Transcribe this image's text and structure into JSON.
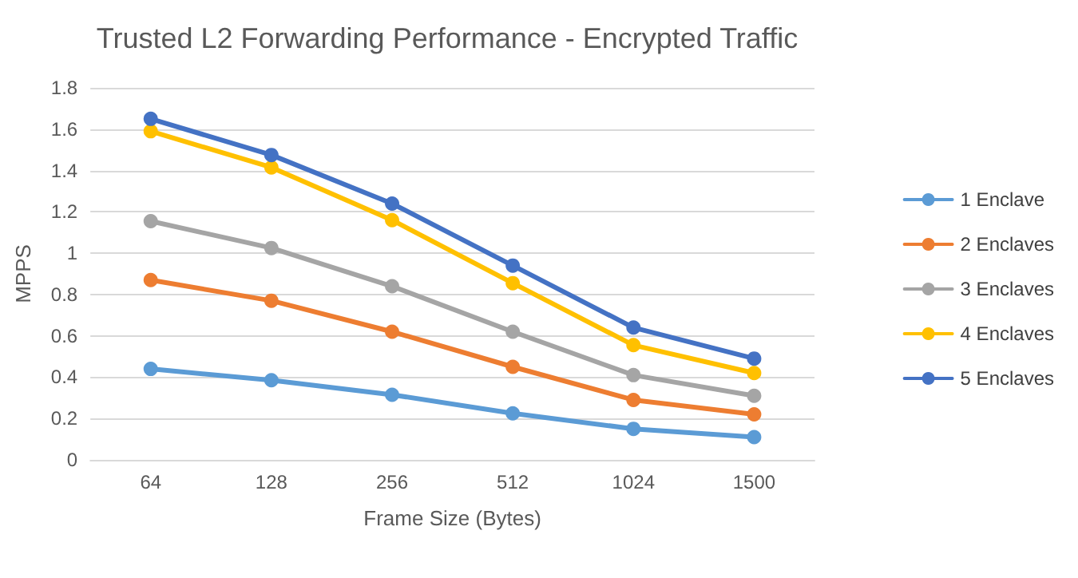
{
  "chart_data": {
    "type": "line",
    "title": "Trusted L2 Forwarding Performance - Encrypted Traffic",
    "xlabel": "Frame Size (Bytes)",
    "ylabel": "MPPS",
    "categories": [
      "64",
      "128",
      "256",
      "512",
      "1024",
      "1500"
    ],
    "series": [
      {
        "name": "1 Enclave",
        "color": "#5b9bd5",
        "values": [
          0.44,
          0.385,
          0.315,
          0.225,
          0.15,
          0.11
        ]
      },
      {
        "name": "2 Enclaves",
        "color": "#ed7d31",
        "values": [
          0.87,
          0.77,
          0.62,
          0.45,
          0.29,
          0.22
        ]
      },
      {
        "name": "3 Enclaves",
        "color": "#a5a5a5",
        "values": [
          1.155,
          1.025,
          0.84,
          0.62,
          0.41,
          0.31
        ]
      },
      {
        "name": "4 Enclaves",
        "color": "#ffc000",
        "values": [
          1.59,
          1.415,
          1.16,
          0.855,
          0.555,
          0.42
        ]
      },
      {
        "name": "5 Enclaves",
        "color": "#4472c4",
        "values": [
          1.65,
          1.475,
          1.24,
          0.94,
          0.64,
          0.49
        ]
      }
    ],
    "ylim": [
      0,
      1.8
    ],
    "yticks": [
      0,
      0.2,
      0.4,
      0.6,
      0.8,
      1,
      1.2,
      1.4,
      1.6,
      1.8
    ],
    "grid": "y",
    "legend": "right",
    "marker": "circle",
    "line_style": "solid"
  }
}
